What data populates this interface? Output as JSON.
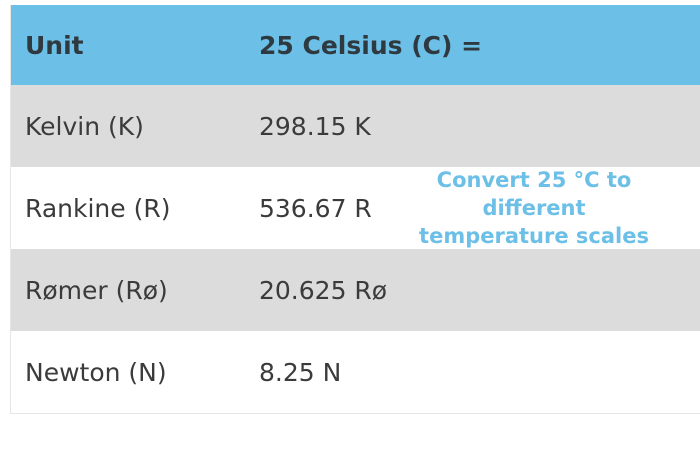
{
  "table": {
    "header": {
      "unit": "Unit",
      "value": "25 Celsius (C) ="
    },
    "rows": [
      {
        "unit": "Kelvin (K)",
        "value": "298.15 K"
      },
      {
        "unit": "Rankine (R)",
        "value": "536.67 R"
      },
      {
        "unit": "Rømer (Rø)",
        "value": "20.625 Rø"
      },
      {
        "unit": "Newton (N)",
        "value": "8.25 N"
      }
    ]
  },
  "overlay": {
    "lines": [
      "Convert 25 °C to",
      "different",
      "temperature scales"
    ]
  },
  "colors": {
    "header_bg": "#6cbfe6",
    "shaded_row_bg": "#dcdcdc",
    "overlay_text": "#6cbfe6"
  }
}
